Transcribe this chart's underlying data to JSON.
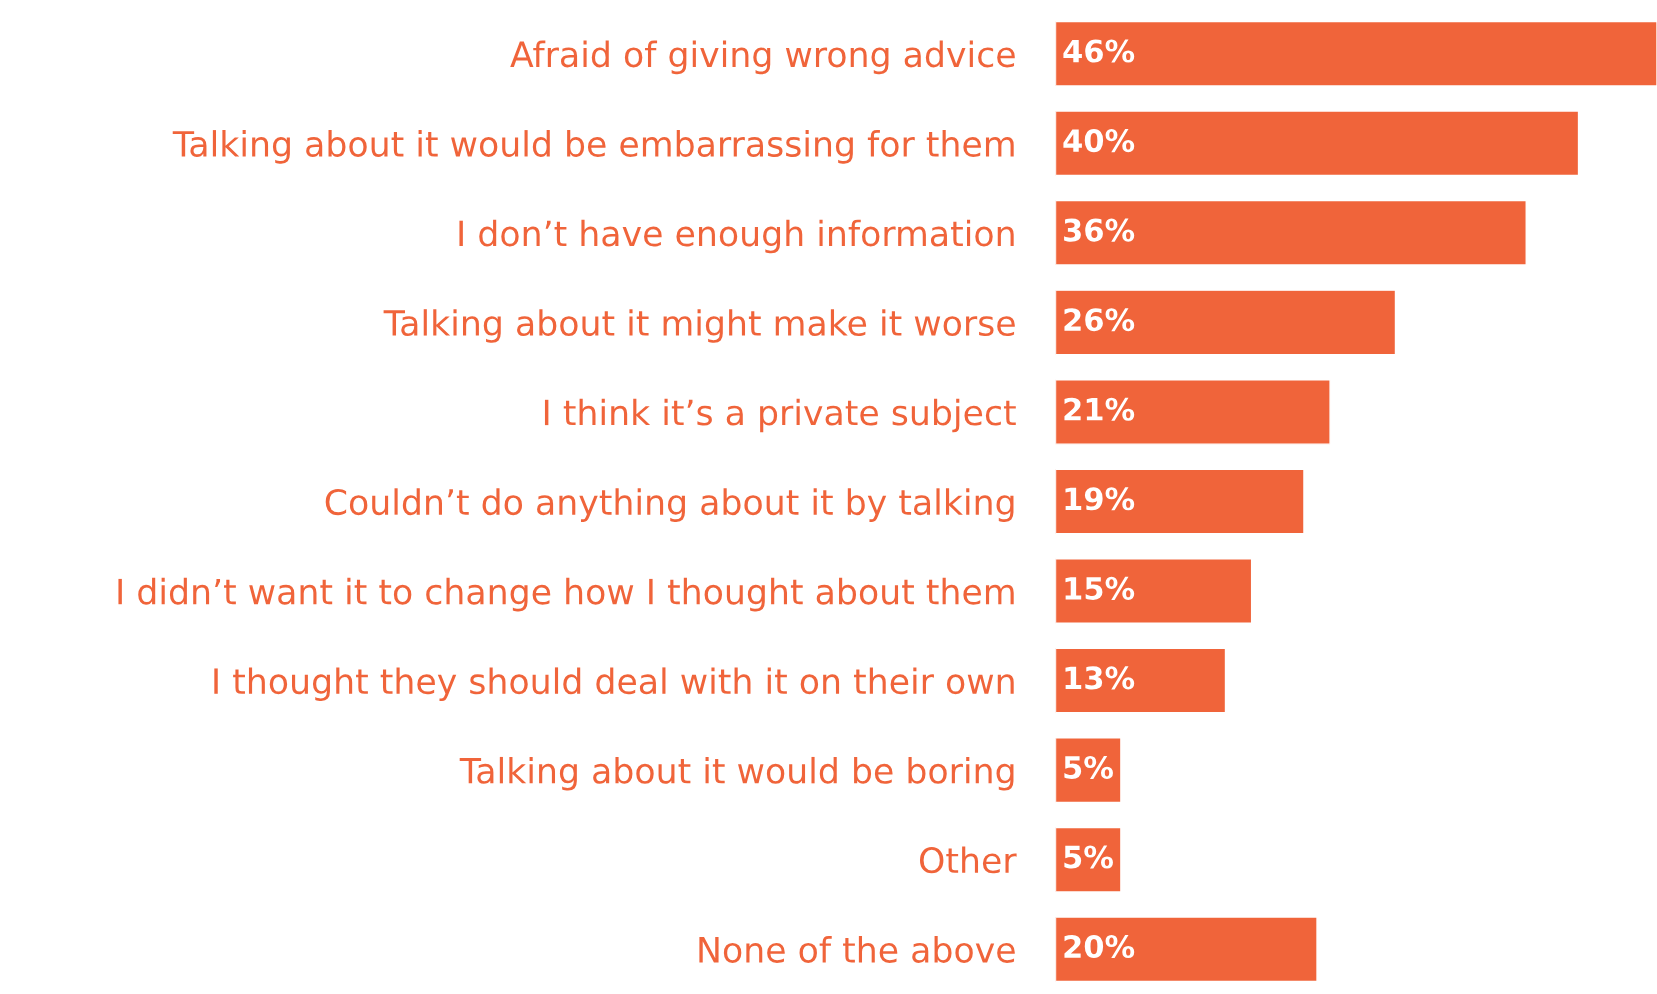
{
  "chart_data": {
    "type": "bar",
    "orientation": "horizontal",
    "categories": [
      "Afraid of giving wrong advice",
      "Talking about it would be embarrassing for them",
      "I don’t have enough information",
      "Talking about it might make it worse",
      "I think it’s a private subject",
      "Couldn’t do anything about it by talking",
      "I didn’t want it to change how I thought about them",
      "I thought they should deal with it on their own",
      "Talking about it would be boring",
      "Other",
      "None of the above"
    ],
    "values": [
      46,
      40,
      36,
      26,
      21,
      19,
      15,
      13,
      5,
      5,
      20
    ],
    "value_labels": [
      "46%",
      "40%",
      "36%",
      "26%",
      "21%",
      "19%",
      "15%",
      "13%",
      "5%",
      "5%",
      "20%"
    ],
    "color": "#f0643a",
    "grid": false,
    "legend": false,
    "tick_labels": "y"
  }
}
